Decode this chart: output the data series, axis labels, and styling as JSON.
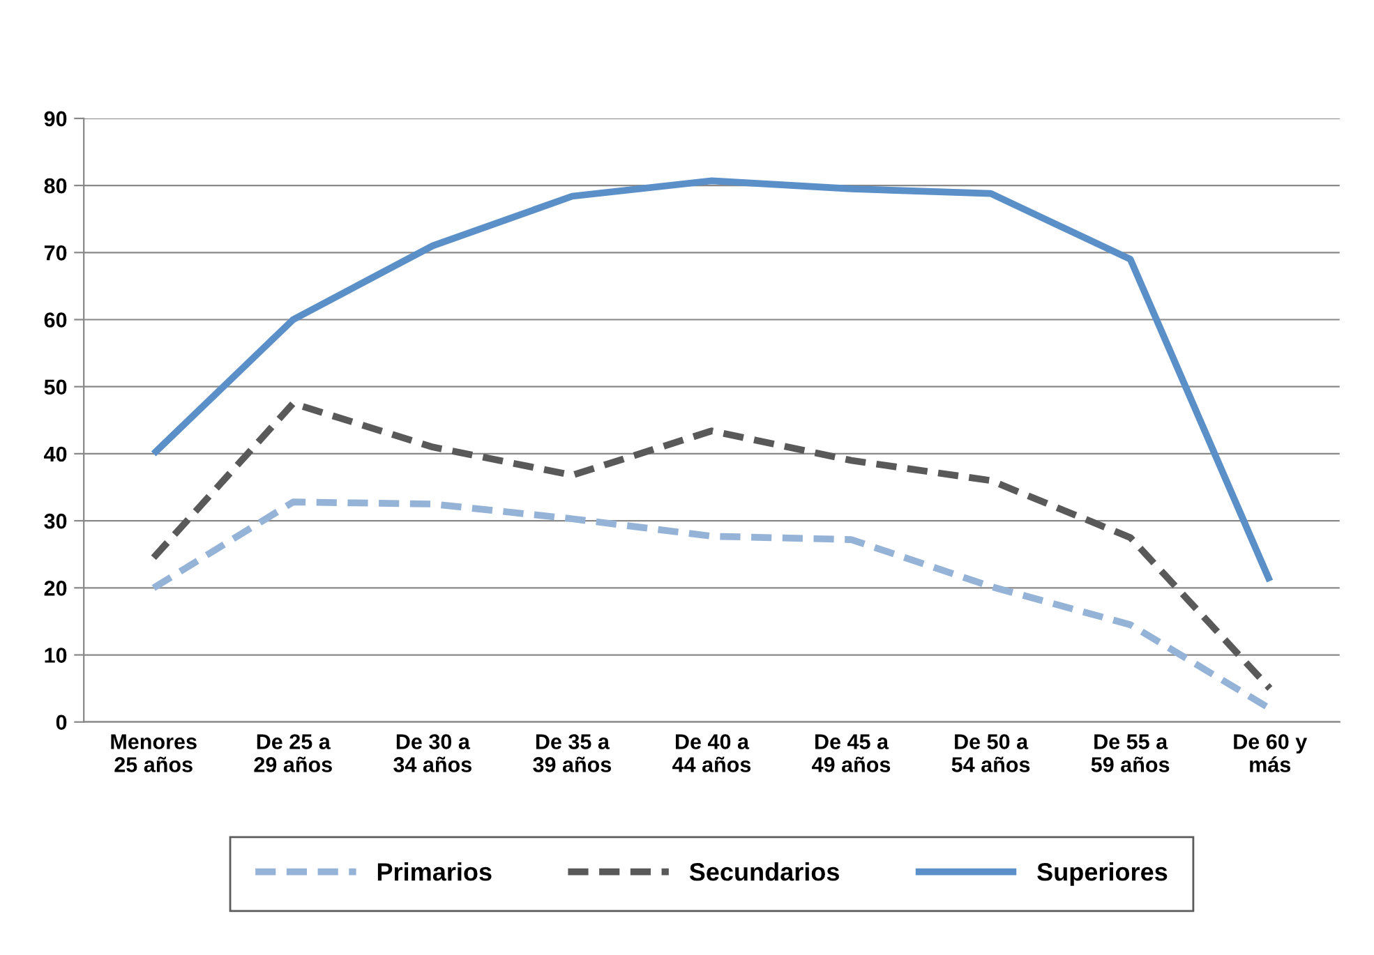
{
  "chart_data": {
    "type": "line",
    "categories": [
      "Menores\n25 años",
      "De 25 a\n29 años",
      "De 30 a\n34 años",
      "De 35 a\n39 años",
      "De 40 a\n44 años",
      "De 45 a\n49 años",
      "De 50 a\n54 años",
      "De 55 a\n59 años",
      "De 60 y\nmás"
    ],
    "series": [
      {
        "name": "Primarios",
        "color": "#95b3d7",
        "line_style": "dashed",
        "values": [
          20,
          32.8,
          32.5,
          30.3,
          27.7,
          27.2,
          20.2,
          14.5,
          2
        ]
      },
      {
        "name": "Secundarios",
        "color": "#595959",
        "line_style": "dashed",
        "values": [
          24.5,
          47.5,
          41,
          36.8,
          43.4,
          39,
          36,
          27.5,
          5
        ]
      },
      {
        "name": "Superiores",
        "color": "#5b8fc7",
        "line_style": "solid",
        "values": [
          40,
          60,
          71,
          78.4,
          80.7,
          79.5,
          78.8,
          69,
          21
        ]
      }
    ],
    "ylim": [
      0,
      90
    ],
    "yticks": [
      0,
      10,
      20,
      30,
      40,
      50,
      60,
      70,
      80,
      90
    ],
    "grid": "y",
    "legend": "bottom",
    "marker": "none"
  }
}
